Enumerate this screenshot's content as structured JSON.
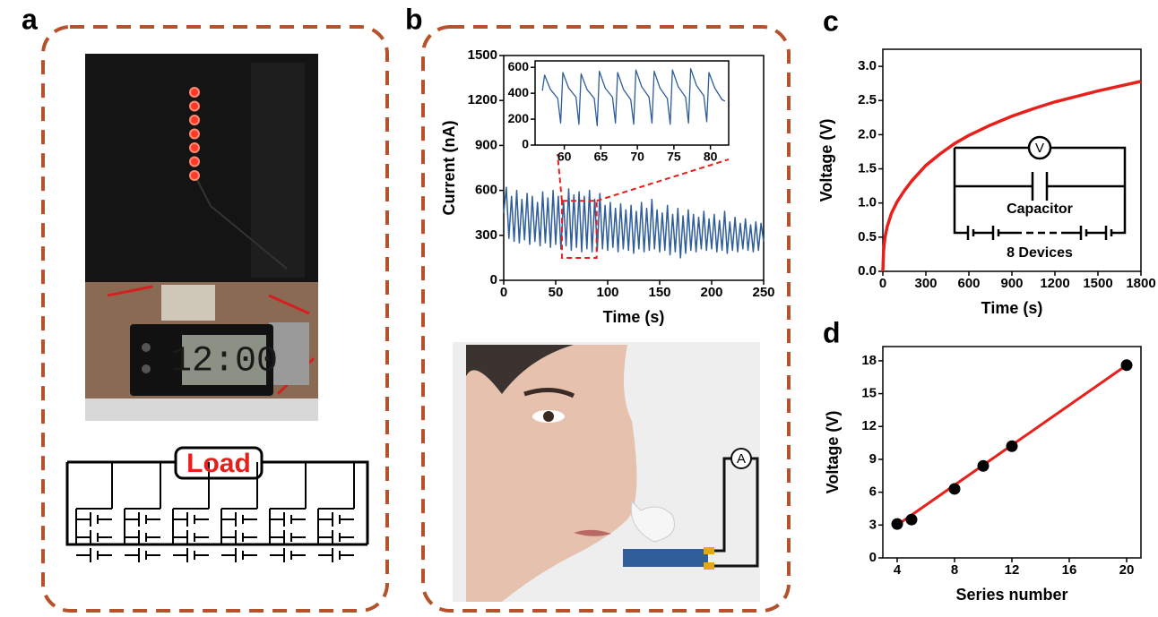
{
  "panel_labels": [
    "a",
    "b",
    "c",
    "d"
  ],
  "panel_a": {
    "load_label": "Load",
    "clock_display": "12:00"
  },
  "panel_b": {
    "ammeter_label": "A"
  },
  "chart_data": [
    {
      "type": "line",
      "xlabel": "Time (s)",
      "ylabel": "Current (nA)",
      "xlim": [
        0,
        250
      ],
      "ylim": [
        0,
        1500
      ],
      "xticks": [
        0,
        50,
        100,
        150,
        200,
        250
      ],
      "yticks": [
        0,
        300,
        600,
        900,
        1200,
        1500
      ],
      "x": [
        0,
        2.5,
        5,
        7.5,
        10,
        12.5,
        15,
        17.5,
        20,
        22.5,
        25,
        27.5,
        30,
        32.5,
        35,
        37.5,
        40,
        42.5,
        45,
        47.5,
        50,
        52.5,
        55,
        57.5,
        60,
        62.5,
        65,
        67.5,
        70,
        72.5,
        75,
        77.5,
        80,
        82.5,
        85,
        87.5,
        90,
        92.5,
        95,
        97.5,
        100,
        102.5,
        105,
        107.5,
        110,
        112.5,
        115,
        117.5,
        120,
        122.5,
        125,
        127.5,
        130,
        132.5,
        135,
        137.5,
        140,
        142.5,
        145,
        147.5,
        150,
        152.5,
        155,
        157.5,
        160,
        162.5,
        165,
        167.5,
        170,
        172.5,
        175,
        177.5,
        180,
        182.5,
        185,
        187.5,
        190,
        192.5,
        195,
        197.5,
        200,
        202.5,
        205,
        207.5,
        210,
        212.5,
        215,
        217.5,
        220,
        222.5,
        225,
        227.5,
        230,
        232.5,
        235,
        237.5,
        240,
        242.5,
        245,
        247.5,
        250
      ],
      "series": [
        {
          "color": "#2e5d9a",
          "values": [
            450,
            620,
            280,
            560,
            260,
            600,
            250,
            540,
            270,
            580,
            240,
            560,
            260,
            520,
            230,
            590,
            250,
            550,
            220,
            600,
            240,
            560,
            210,
            530,
            230,
            610,
            200,
            570,
            220,
            590,
            190,
            560,
            210,
            600,
            190,
            540,
            200,
            580,
            210,
            500,
            200,
            520,
            220,
            480,
            190,
            510,
            210,
            470,
            200,
            500,
            180,
            460,
            210,
            520,
            190,
            480,
            200,
            540,
            210,
            470,
            190,
            450,
            200,
            500,
            170,
            440,
            190,
            480,
            150,
            430,
            180,
            470,
            200,
            440,
            190,
            420,
            210,
            460,
            200,
            410,
            210,
            440,
            190,
            400,
            200,
            460,
            180,
            390,
            200,
            420,
            190,
            380,
            210,
            410,
            200,
            370,
            190,
            390,
            200,
            380,
            260
          ]
        }
      ]
    },
    {
      "type": "line",
      "xlim": [
        56,
        82.5
      ],
      "ylim": [
        0,
        650
      ],
      "xticks": [
        60,
        65,
        70,
        75,
        80
      ],
      "yticks": [
        0,
        200,
        400,
        600
      ],
      "x": [
        57,
        57.3,
        58.1,
        59.1,
        59.5,
        59.8,
        60.6,
        61.6,
        62.0,
        62.3,
        63.1,
        64.1,
        64.5,
        64.8,
        65.6,
        66.6,
        67.0,
        67.3,
        68.1,
        69.1,
        69.5,
        69.8,
        70.6,
        71.6,
        72.0,
        72.3,
        73.1,
        74.1,
        74.5,
        74.8,
        75.6,
        76.6,
        77.0,
        77.3,
        78.1,
        79.1,
        79.5,
        79.8,
        80.6,
        81.6,
        82
      ],
      "series": [
        {
          "color": "#2e5d9a",
          "values": [
            420,
            540,
            430,
            360,
            170,
            560,
            440,
            370,
            160,
            550,
            430,
            360,
            150,
            570,
            440,
            370,
            170,
            560,
            430,
            350,
            160,
            580,
            450,
            370,
            170,
            570,
            440,
            360,
            160,
            580,
            450,
            370,
            170,
            590,
            460,
            380,
            180,
            560,
            440,
            350,
            340
          ]
        }
      ]
    },
    {
      "type": "line",
      "xlabel": "Time (s)",
      "ylabel": "Voltage (V)",
      "xlim": [
        0,
        1800
      ],
      "ylim": [
        0,
        3.25
      ],
      "xticks": [
        0,
        300,
        600,
        900,
        1200,
        1500,
        1800
      ],
      "yticks": [
        {
          "value": 0,
          "label": "0.0"
        },
        0.5,
        {
          "value": 1,
          "label": "1.0"
        },
        1.5,
        {
          "value": 2,
          "label": "2.0"
        },
        2.5,
        {
          "value": 3,
          "label": "3.0"
        }
      ],
      "annotations": [
        "V",
        "Capacitor",
        "8 Devices"
      ],
      "x": [
        0,
        5,
        15,
        30,
        60,
        100,
        150,
        200,
        300,
        400,
        500,
        600,
        750,
        900,
        1050,
        1200,
        1350,
        1500,
        1650,
        1800
      ],
      "series": [
        {
          "color": "#e8201c",
          "values": [
            0,
            0.3,
            0.5,
            0.65,
            0.85,
            1.02,
            1.18,
            1.32,
            1.55,
            1.72,
            1.87,
            1.99,
            2.14,
            2.27,
            2.38,
            2.48,
            2.56,
            2.64,
            2.71,
            2.78
          ]
        }
      ]
    },
    {
      "type": "scatter",
      "xlabel": "Series number",
      "ylabel": "Voltage (V)",
      "xlim": [
        3,
        21
      ],
      "ylim": [
        0,
        19.3
      ],
      "xticks": [
        4,
        8,
        12,
        16,
        20
      ],
      "yticks": [
        0,
        3,
        6,
        9,
        12,
        15,
        18
      ],
      "series": [
        {
          "style": "line",
          "color": "#e8201c",
          "x": [
            4,
            20
          ],
          "values": [
            3.0,
            17.6
          ]
        },
        {
          "style": "markers",
          "color": "#000000",
          "x": [
            4,
            5,
            8,
            10,
            12,
            20
          ],
          "values": [
            3.1,
            3.5,
            6.3,
            8.4,
            10.2,
            17.6
          ]
        }
      ]
    }
  ]
}
